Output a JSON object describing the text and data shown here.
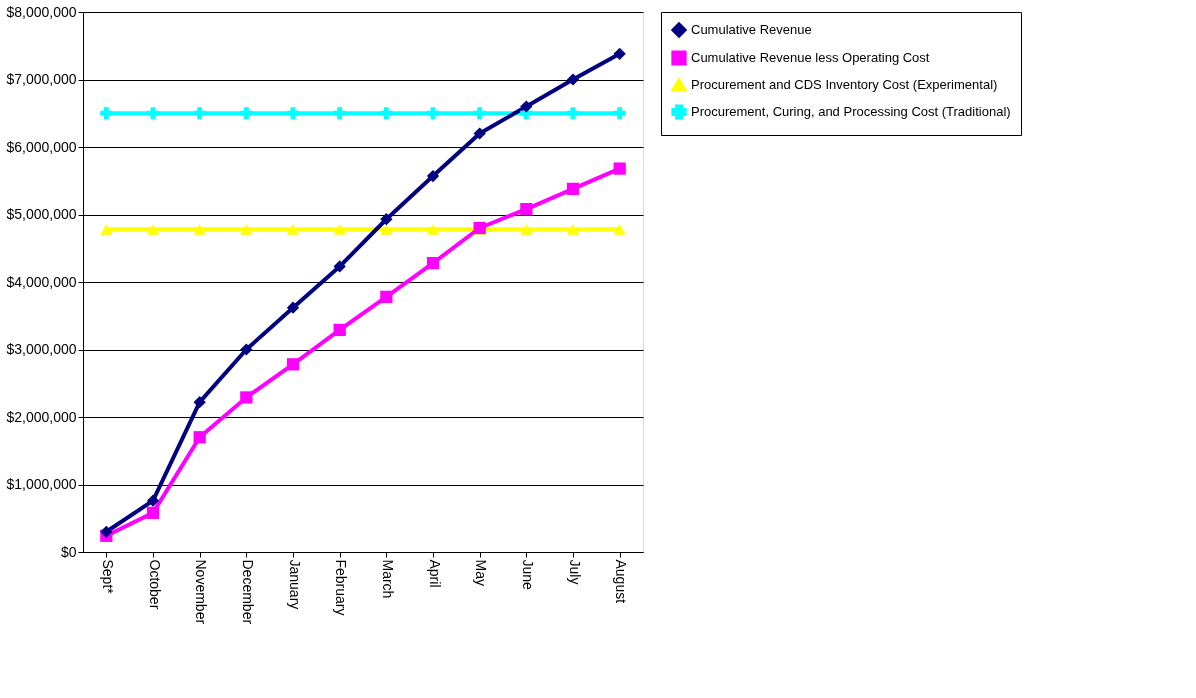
{
  "chart_data": {
    "type": "line",
    "categories": [
      "Sept*",
      "October",
      "November",
      "December",
      "January",
      "February",
      "March",
      "April",
      "May",
      "June",
      "July",
      "August"
    ],
    "series": [
      {
        "name": "Cumulative Revenue",
        "color": "#000080",
        "marker": "diamond",
        "values": [
          300000,
          760000,
          2220000,
          3000000,
          3620000,
          4230000,
          4930000,
          5570000,
          6200000,
          6600000,
          7000000,
          7380000
        ]
      },
      {
        "name": "Cumulative Revenue less Operating Cost",
        "color": "#ff00ff",
        "marker": "square",
        "values": [
          240000,
          580000,
          1700000,
          2290000,
          2780000,
          3290000,
          3780000,
          4280000,
          4800000,
          5080000,
          5380000,
          5680000
        ]
      },
      {
        "name": "Procurement and CDS Inventory Cost (Experimental)",
        "color": "#ffff00",
        "marker": "triangle",
        "values": [
          4780000,
          4780000,
          4780000,
          4780000,
          4780000,
          4780000,
          4780000,
          4780000,
          4780000,
          4780000,
          4780000,
          4780000
        ]
      },
      {
        "name": "Procurement, Curing, and Processing Cost (Traditional)",
        "color": "#00ffff",
        "marker": "cross",
        "values": [
          6500000,
          6500000,
          6500000,
          6500000,
          6500000,
          6500000,
          6500000,
          6500000,
          6500000,
          6500000,
          6500000,
          6500000
        ]
      }
    ],
    "ylim": [
      0,
      8000000
    ],
    "yticks": [
      {
        "value": 0,
        "label": "$0"
      },
      {
        "value": 1000000,
        "label": "$1,000,000"
      },
      {
        "value": 2000000,
        "label": "$2,000,000"
      },
      {
        "value": 3000000,
        "label": "$3,000,000"
      },
      {
        "value": 4000000,
        "label": "$4,000,000"
      },
      {
        "value": 5000000,
        "label": "$5,000,000"
      },
      {
        "value": 6000000,
        "label": "$6,000,000"
      },
      {
        "value": 7000000,
        "label": "$7,000,000"
      },
      {
        "value": 8000000,
        "label": "$8,000,000"
      }
    ],
    "grid": "y",
    "legend": "right"
  }
}
